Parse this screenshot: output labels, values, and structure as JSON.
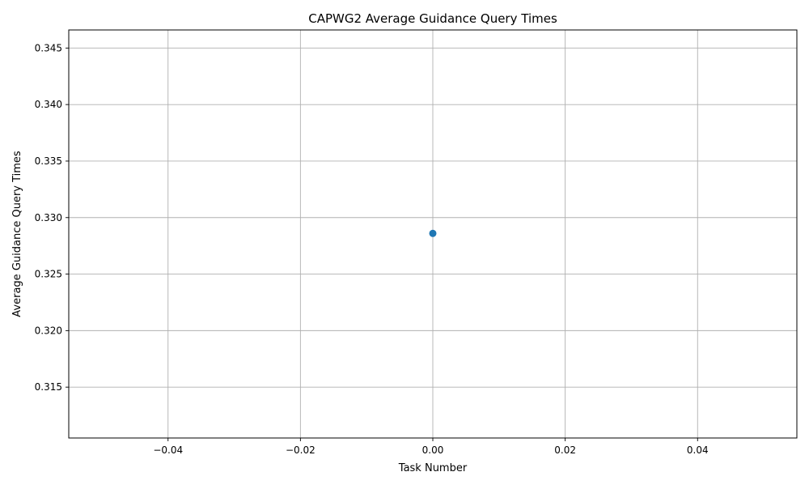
{
  "chart_data": {
    "type": "scatter",
    "title": "CAPWG2 Average Guidance Query Times",
    "xlabel": "Task Number",
    "ylabel": "Average Guidance Query Times",
    "xlim": [
      -0.055,
      0.055
    ],
    "ylim": [
      0.3105,
      0.3466
    ],
    "x_ticks": [
      -0.04,
      -0.02,
      0.0,
      0.02,
      0.04
    ],
    "x_tick_labels": [
      "−0.04",
      "−0.02",
      "0.00",
      "0.02",
      "0.04"
    ],
    "y_ticks": [
      0.315,
      0.32,
      0.325,
      0.33,
      0.335,
      0.34,
      0.345
    ],
    "y_tick_labels": [
      "0.315",
      "0.320",
      "0.325",
      "0.330",
      "0.335",
      "0.340",
      "0.345"
    ],
    "grid": true,
    "series": [
      {
        "color": "#1f77b4",
        "points": [
          {
            "x": 0.0,
            "y": 0.3286
          }
        ]
      }
    ]
  }
}
